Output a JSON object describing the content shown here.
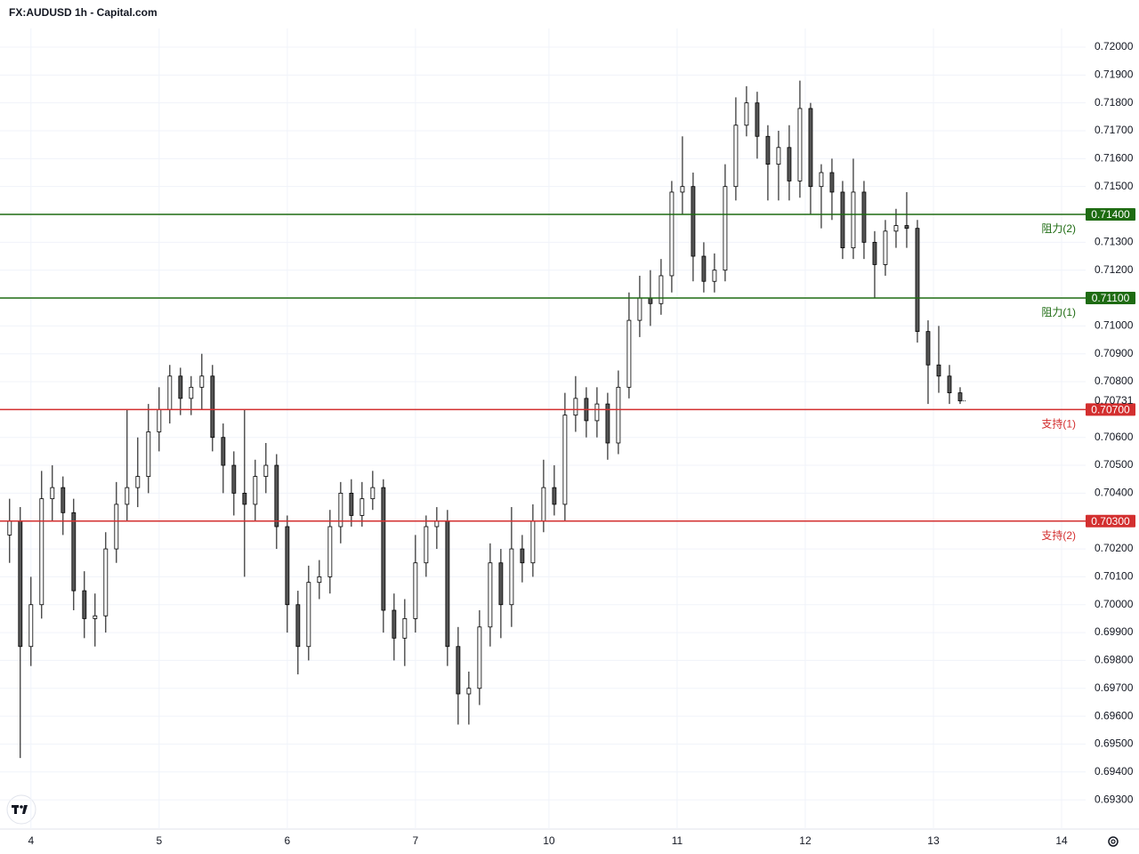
{
  "chart_data": {
    "type": "candlestick",
    "title": "FX:AUDUSD 1h - Capital.com",
    "x": [
      -4,
      -2,
      0,
      2,
      4,
      6,
      8,
      10,
      12,
      14,
      16,
      18,
      20,
      22,
      24,
      26,
      28,
      30,
      32,
      34,
      36,
      38,
      40,
      42,
      44,
      46,
      48,
      50,
      52,
      54,
      56,
      58,
      60,
      62,
      64,
      66,
      68,
      70,
      72,
      74,
      76,
      78,
      80,
      82,
      84,
      86,
      88,
      90,
      92,
      94,
      96,
      98,
      100,
      102,
      104,
      106,
      108,
      110,
      112,
      114,
      116,
      118,
      120,
      122,
      124,
      126,
      128,
      130,
      132,
      134,
      136,
      138,
      140,
      142,
      144,
      146,
      148,
      150,
      152,
      154,
      156,
      158,
      160,
      162,
      164,
      166,
      168,
      170,
      172,
      174
    ],
    "ohlc": [
      [
        0.7025,
        0.7038,
        0.7015,
        0.703
      ],
      [
        0.703,
        0.7035,
        0.6945,
        0.6985
      ],
      [
        0.6985,
        0.701,
        0.6978,
        0.7
      ],
      [
        0.7,
        0.7048,
        0.6995,
        0.7038
      ],
      [
        0.7038,
        0.705,
        0.703,
        0.7042
      ],
      [
        0.7042,
        0.7046,
        0.7025,
        0.7033
      ],
      [
        0.7033,
        0.7038,
        0.6998,
        0.7005
      ],
      [
        0.7005,
        0.7012,
        0.6988,
        0.6995
      ],
      [
        0.6995,
        0.7004,
        0.6985,
        0.6996
      ],
      [
        0.6996,
        0.7026,
        0.699,
        0.702
      ],
      [
        0.702,
        0.7044,
        0.7015,
        0.7036
      ],
      [
        0.7036,
        0.707,
        0.703,
        0.7042
      ],
      [
        0.7042,
        0.706,
        0.7035,
        0.7046
      ],
      [
        0.7046,
        0.7072,
        0.704,
        0.7062
      ],
      [
        0.7062,
        0.7078,
        0.7055,
        0.707
      ],
      [
        0.707,
        0.7086,
        0.7065,
        0.7082
      ],
      [
        0.7082,
        0.7085,
        0.7068,
        0.7074
      ],
      [
        0.7074,
        0.7082,
        0.7068,
        0.7078
      ],
      [
        0.7078,
        0.709,
        0.707,
        0.7082
      ],
      [
        0.7082,
        0.7086,
        0.7055,
        0.706
      ],
      [
        0.706,
        0.7065,
        0.704,
        0.705
      ],
      [
        0.705,
        0.7055,
        0.7032,
        0.704
      ],
      [
        0.704,
        0.707,
        0.701,
        0.7036
      ],
      [
        0.7036,
        0.7052,
        0.703,
        0.7046
      ],
      [
        0.7046,
        0.7058,
        0.704,
        0.705
      ],
      [
        0.705,
        0.7054,
        0.702,
        0.7028
      ],
      [
        0.7028,
        0.7032,
        0.699,
        0.7
      ],
      [
        0.7,
        0.7005,
        0.6975,
        0.6985
      ],
      [
        0.6985,
        0.7014,
        0.698,
        0.7008
      ],
      [
        0.7008,
        0.7016,
        0.7002,
        0.701
      ],
      [
        0.701,
        0.7034,
        0.7004,
        0.7028
      ],
      [
        0.7028,
        0.7044,
        0.7022,
        0.704
      ],
      [
        0.704,
        0.7045,
        0.7028,
        0.7032
      ],
      [
        0.7032,
        0.7044,
        0.7028,
        0.7038
      ],
      [
        0.7038,
        0.7048,
        0.7034,
        0.7042
      ],
      [
        0.7042,
        0.7045,
        0.699,
        0.6998
      ],
      [
        0.6998,
        0.7004,
        0.698,
        0.6988
      ],
      [
        0.6988,
        0.7002,
        0.6978,
        0.6995
      ],
      [
        0.6995,
        0.7025,
        0.699,
        0.7015
      ],
      [
        0.7015,
        0.7032,
        0.701,
        0.7028
      ],
      [
        0.7028,
        0.7035,
        0.702,
        0.703
      ],
      [
        0.703,
        0.7034,
        0.6978,
        0.6985
      ],
      [
        0.6985,
        0.6992,
        0.6957,
        0.6968
      ],
      [
        0.6968,
        0.6976,
        0.6957,
        0.697
      ],
      [
        0.697,
        0.6998,
        0.6964,
        0.6992
      ],
      [
        0.6992,
        0.7022,
        0.6985,
        0.7015
      ],
      [
        0.7015,
        0.702,
        0.6988,
        0.7
      ],
      [
        0.7,
        0.7035,
        0.6992,
        0.702
      ],
      [
        0.702,
        0.7025,
        0.7008,
        0.7015
      ],
      [
        0.7015,
        0.7036,
        0.701,
        0.703
      ],
      [
        0.703,
        0.7052,
        0.7026,
        0.7042
      ],
      [
        0.7042,
        0.705,
        0.7032,
        0.7036
      ],
      [
        0.7036,
        0.7076,
        0.703,
        0.7068
      ],
      [
        0.7068,
        0.7082,
        0.7062,
        0.7074
      ],
      [
        0.7074,
        0.7078,
        0.706,
        0.7066
      ],
      [
        0.7066,
        0.7078,
        0.706,
        0.7072
      ],
      [
        0.7072,
        0.7076,
        0.7052,
        0.7058
      ],
      [
        0.7058,
        0.7084,
        0.7054,
        0.7078
      ],
      [
        0.7078,
        0.7112,
        0.7074,
        0.7102
      ],
      [
        0.7102,
        0.7118,
        0.7096,
        0.711
      ],
      [
        0.711,
        0.712,
        0.71,
        0.7108
      ],
      [
        0.7108,
        0.7124,
        0.7104,
        0.7118
      ],
      [
        0.7118,
        0.7152,
        0.7112,
        0.7148
      ],
      [
        0.7148,
        0.7168,
        0.714,
        0.715
      ],
      [
        0.715,
        0.7155,
        0.7116,
        0.7125
      ],
      [
        0.7125,
        0.713,
        0.7112,
        0.7116
      ],
      [
        0.7116,
        0.7126,
        0.7112,
        0.712
      ],
      [
        0.712,
        0.7158,
        0.7116,
        0.715
      ],
      [
        0.715,
        0.7182,
        0.7145,
        0.7172
      ],
      [
        0.7172,
        0.7186,
        0.7168,
        0.718
      ],
      [
        0.718,
        0.7184,
        0.716,
        0.7168
      ],
      [
        0.7168,
        0.7172,
        0.7145,
        0.7158
      ],
      [
        0.7158,
        0.717,
        0.7145,
        0.7164
      ],
      [
        0.7164,
        0.7172,
        0.7145,
        0.7152
      ],
      [
        0.7152,
        0.7188,
        0.7146,
        0.7178
      ],
      [
        0.7178,
        0.718,
        0.714,
        0.715
      ],
      [
        0.715,
        0.7158,
        0.7135,
        0.7155
      ],
      [
        0.7155,
        0.716,
        0.7138,
        0.7148
      ],
      [
        0.7148,
        0.7152,
        0.7124,
        0.7128
      ],
      [
        0.7128,
        0.716,
        0.7124,
        0.7148
      ],
      [
        0.7148,
        0.7152,
        0.7124,
        0.713
      ],
      [
        0.713,
        0.7134,
        0.711,
        0.7122
      ],
      [
        0.7122,
        0.7138,
        0.7118,
        0.7134
      ],
      [
        0.7134,
        0.7142,
        0.7128,
        0.7136
      ],
      [
        0.7136,
        0.7148,
        0.7128,
        0.7135
      ],
      [
        0.7135,
        0.7138,
        0.7094,
        0.7098
      ],
      [
        0.7098,
        0.7102,
        0.7072,
        0.7086
      ],
      [
        0.7086,
        0.71,
        0.7076,
        0.7082
      ],
      [
        0.7082,
        0.7086,
        0.7072,
        0.7076
      ],
      [
        0.7076,
        0.7078,
        0.7072,
        0.70731
      ]
    ],
    "up_color": "#ffffff",
    "down_color": "#555555",
    "edge_color": "#000000",
    "xlim": [
      -5.8,
      197.5
    ],
    "xticks": [
      {
        "value": 0,
        "label": "4"
      },
      {
        "value": 24,
        "label": "5"
      },
      {
        "value": 48,
        "label": "6"
      },
      {
        "value": 72,
        "label": "7"
      },
      {
        "value": 97,
        "label": "10"
      },
      {
        "value": 121,
        "label": "11"
      },
      {
        "value": 145,
        "label": "12"
      },
      {
        "value": 169,
        "label": "13"
      },
      {
        "value": 193,
        "label": "14"
      }
    ],
    "ylim": [
      0.69195,
      0.72067
    ],
    "yticks": [
      {
        "value": 0.72,
        "label": "0.72000"
      },
      {
        "value": 0.719,
        "label": "0.71900"
      },
      {
        "value": 0.718,
        "label": "0.71800"
      },
      {
        "value": 0.717,
        "label": "0.71700"
      },
      {
        "value": 0.716,
        "label": "0.71600"
      },
      {
        "value": 0.715,
        "label": "0.71500"
      },
      {
        "value": 0.713,
        "label": "0.71300"
      },
      {
        "value": 0.712,
        "label": "0.71200"
      },
      {
        "value": 0.71,
        "label": "0.71000"
      },
      {
        "value": 0.709,
        "label": "0.70900"
      },
      {
        "value": 0.708,
        "label": "0.70800"
      },
      {
        "value": 0.706,
        "label": "0.70600"
      },
      {
        "value": 0.705,
        "label": "0.70500"
      },
      {
        "value": 0.704,
        "label": "0.70400"
      },
      {
        "value": 0.702,
        "label": "0.70200"
      },
      {
        "value": 0.701,
        "label": "0.70100"
      },
      {
        "value": 0.7,
        "label": "0.70000"
      },
      {
        "value": 0.699,
        "label": "0.69900"
      },
      {
        "value": 0.698,
        "label": "0.69800"
      },
      {
        "value": 0.697,
        "label": "0.69700"
      },
      {
        "value": 0.696,
        "label": "0.69600"
      },
      {
        "value": 0.695,
        "label": "0.69500"
      },
      {
        "value": 0.694,
        "label": "0.69400"
      },
      {
        "value": 0.693,
        "label": "0.69300"
      }
    ],
    "grid": true,
    "current_price": {
      "value": 0.70731,
      "label": "0.70731"
    },
    "levels": [
      {
        "value": 0.714,
        "label": "0.71400",
        "text": "阻力(2)",
        "color": "#1e6b12"
      },
      {
        "value": 0.711,
        "label": "0.71100",
        "text": "阻力(1)",
        "color": "#1e6b12"
      },
      {
        "value": 0.707,
        "label": "0.70700",
        "text": "支持(1)",
        "color": "#d32f2f"
      },
      {
        "value": 0.703,
        "label": "0.70300",
        "text": "支持(2)",
        "color": "#d32f2f"
      }
    ]
  }
}
